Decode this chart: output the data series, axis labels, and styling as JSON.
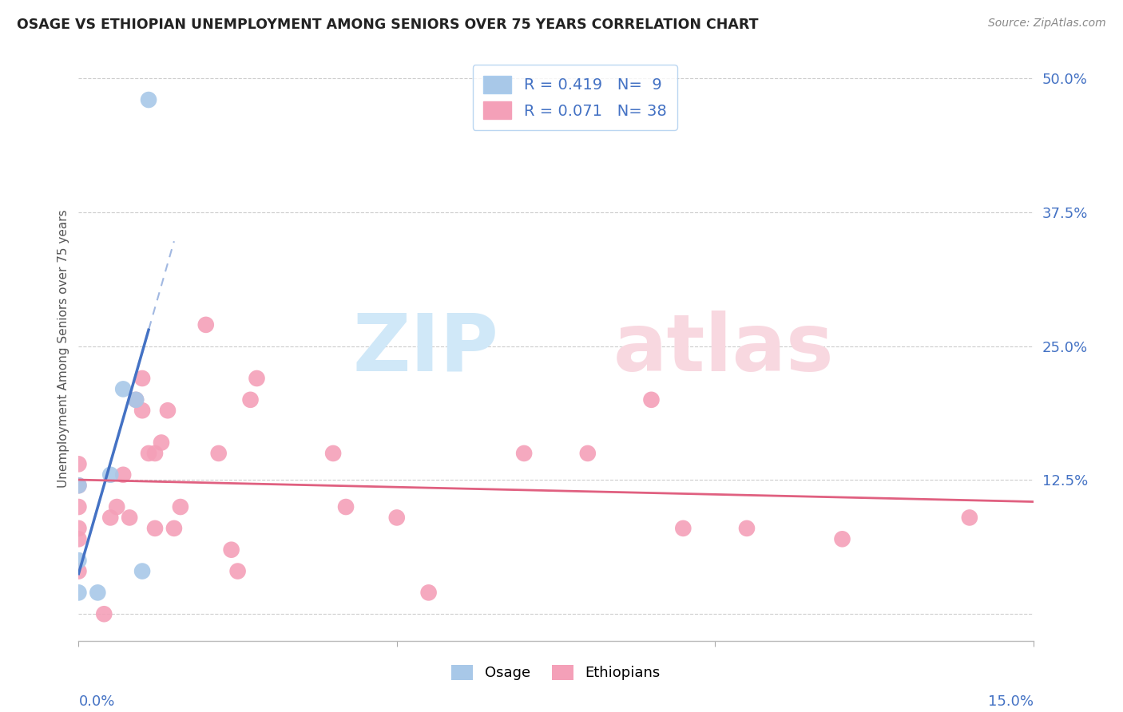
{
  "title": "OSAGE VS ETHIOPIAN UNEMPLOYMENT AMONG SENIORS OVER 75 YEARS CORRELATION CHART",
  "source": "Source: ZipAtlas.com",
  "ylabel": "Unemployment Among Seniors over 75 years",
  "ytick_values": [
    0,
    0.125,
    0.25,
    0.375,
    0.5
  ],
  "ytick_labels": [
    "",
    "12.5%",
    "25.0%",
    "37.5%",
    "50.0%"
  ],
  "xlim": [
    0,
    0.15
  ],
  "ylim": [
    -0.02,
    0.52
  ],
  "osage_R": 0.419,
  "osage_N": 9,
  "ethiopian_R": 0.071,
  "ethiopian_N": 38,
  "osage_color": "#a8c8e8",
  "ethiopian_color": "#f4a0b8",
  "osage_line_color": "#4472c4",
  "ethiopian_line_color": "#e06080",
  "legend_text_color": "#4472c4",
  "osage_points_x": [
    0.0,
    0.0,
    0.0,
    0.003,
    0.005,
    0.007,
    0.009,
    0.01,
    0.011
  ],
  "osage_points_y": [
    0.02,
    0.05,
    0.12,
    0.02,
    0.13,
    0.21,
    0.2,
    0.04,
    0.48
  ],
  "ethiopian_points_x": [
    0.0,
    0.0,
    0.0,
    0.0,
    0.0,
    0.0,
    0.004,
    0.005,
    0.006,
    0.007,
    0.008,
    0.009,
    0.01,
    0.01,
    0.011,
    0.012,
    0.012,
    0.013,
    0.014,
    0.015,
    0.016,
    0.02,
    0.022,
    0.024,
    0.025,
    0.027,
    0.028,
    0.04,
    0.042,
    0.05,
    0.055,
    0.07,
    0.08,
    0.09,
    0.095,
    0.105,
    0.12,
    0.14
  ],
  "ethiopian_points_y": [
    0.04,
    0.07,
    0.08,
    0.1,
    0.12,
    0.14,
    0.0,
    0.09,
    0.1,
    0.13,
    0.09,
    0.2,
    0.19,
    0.22,
    0.15,
    0.08,
    0.15,
    0.16,
    0.19,
    0.08,
    0.1,
    0.27,
    0.15,
    0.06,
    0.04,
    0.2,
    0.22,
    0.15,
    0.1,
    0.09,
    0.02,
    0.15,
    0.15,
    0.2,
    0.08,
    0.08,
    0.07,
    0.09
  ]
}
